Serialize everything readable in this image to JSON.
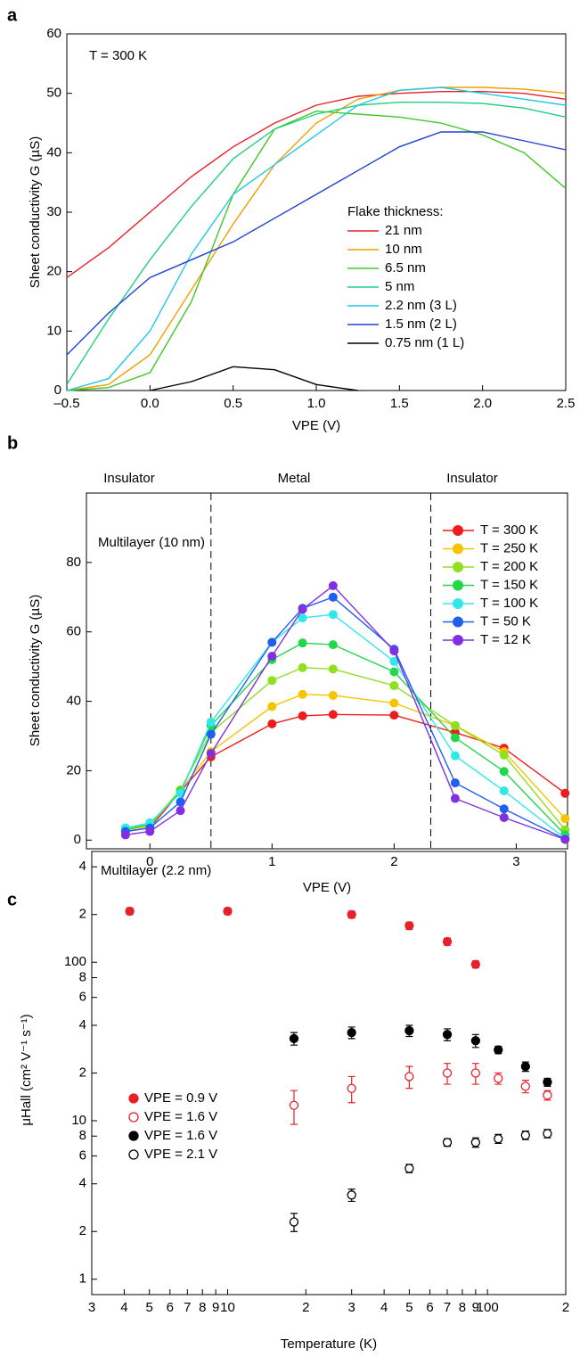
{
  "chart_data": [
    {
      "panel_label": "a",
      "type": "line",
      "annotation": "T = 300 K",
      "xlabel": "VPE (V)",
      "ylabel": "Sheet conductivity G (µS)",
      "xlim": [
        -0.5,
        2.5
      ],
      "ylim": [
        0,
        60
      ],
      "xticks": [
        {
          "value": -0.5,
          "label": "–0.5"
        },
        {
          "value": 0,
          "label": "0.0"
        },
        0.5,
        {
          "value": 1,
          "label": "1.0"
        },
        1.5,
        {
          "value": 2,
          "label": "2.0"
        },
        2.5
      ],
      "yticks": [
        0,
        10,
        20,
        30,
        40,
        50,
        60
      ],
      "legend_title": "Flake thickness:",
      "x": [
        -0.5,
        -0.25,
        0,
        0.25,
        0.5,
        0.75,
        1.0,
        1.25,
        1.5,
        1.75,
        2.0,
        2.25,
        2.5
      ],
      "series": [
        {
          "name": "21 nm",
          "color": "#e8202a",
          "values": [
            19,
            24,
            30,
            36,
            41,
            45,
            48,
            49.5,
            50,
            50.3,
            50.3,
            50,
            49
          ]
        },
        {
          "name": "10 nm",
          "color": "#f0a000",
          "values": [
            0,
            1,
            6,
            17,
            28,
            38,
            45,
            49,
            50.5,
            51,
            51,
            50.7,
            50
          ]
        },
        {
          "name": "6.5 nm",
          "color": "#40c828",
          "values": [
            0,
            0.5,
            3,
            15,
            33,
            44,
            47,
            46.5,
            46,
            45,
            43,
            40,
            34
          ]
        },
        {
          "name": "5 nm",
          "color": "#20d080",
          "values": [
            1,
            12,
            22,
            31,
            39,
            44,
            46.5,
            48,
            48.5,
            48.5,
            48.3,
            47.5,
            46
          ]
        },
        {
          "name": "2.2 nm (3 L)",
          "color": "#20c8e8",
          "values": [
            0,
            2,
            10,
            23,
            33,
            38,
            43,
            48,
            50.5,
            51,
            50,
            49,
            48
          ]
        },
        {
          "name": "1.5 nm (2 L)",
          "color": "#2040d0",
          "values": [
            6,
            13,
            19,
            22,
            25,
            29,
            33,
            37,
            41,
            43.5,
            43.5,
            42,
            40.5
          ]
        },
        {
          "name": "0.75 nm (1 L)",
          "color": "#000000",
          "values": [
            null,
            null,
            0,
            1.5,
            4,
            3.5,
            1,
            0,
            null,
            null,
            null,
            null,
            null
          ]
        }
      ]
    },
    {
      "panel_label": "b",
      "type": "line",
      "markers": true,
      "annotation": "Multilayer (10 nm)",
      "regions": [
        "Insulator",
        "Metal",
        "Insulator"
      ],
      "vlines": [
        0.5,
        2.3
      ],
      "xlabel": "VPE (V)",
      "ylabel": "Sheet conductivity G (µS)",
      "xlim": [
        -0.52,
        3.42
      ],
      "ylim": [
        -2.5,
        100
      ],
      "xticks": [
        0,
        1,
        2,
        3
      ],
      "yticks": [
        0,
        20,
        40,
        60,
        80
      ],
      "x": [
        -0.2,
        0,
        0.25,
        0.5,
        1.0,
        1.25,
        1.5,
        2.0,
        2.5,
        2.9,
        3.4
      ],
      "series": [
        {
          "name": "T = 300 K",
          "color": "#ee1c1c",
          "values": [
            2.5,
            3.5,
            14,
            24,
            33.5,
            35.8,
            36.2,
            36,
            31,
            26.5,
            13.5
          ]
        },
        {
          "name": "T = 250 K",
          "color": "#f5c400",
          "values": [
            3,
            4,
            14.5,
            25.5,
            38.5,
            42,
            41.7,
            39.5,
            33,
            25.5,
            6.2
          ]
        },
        {
          "name": "T = 200 K",
          "color": "#90e020",
          "values": [
            3.5,
            4.5,
            14.5,
            31,
            46,
            49.7,
            49.3,
            44.5,
            33,
            24.5,
            3
          ]
        },
        {
          "name": "T = 150 K",
          "color": "#20d848",
          "values": [
            3,
            4.5,
            14,
            33,
            52,
            56.8,
            56.3,
            48.5,
            29.5,
            19.8,
            1.5
          ]
        },
        {
          "name": "T = 100 K",
          "color": "#30e8e8",
          "values": [
            3.5,
            5,
            13.5,
            34,
            57,
            64,
            65,
            51.5,
            24.3,
            14.2,
            0.5
          ]
        },
        {
          "name": "T = 50 K",
          "color": "#2060f0",
          "values": [
            2.5,
            3.5,
            11,
            30.5,
            57,
            66.8,
            70,
            55,
            16.5,
            9,
            0.3
          ]
        },
        {
          "name": "T = 12 K",
          "color": "#8030e0",
          "values": [
            1.5,
            2.5,
            8.5,
            25,
            53,
            66.5,
            73.3,
            54.5,
            12,
            6.5,
            0.2
          ]
        }
      ]
    },
    {
      "panel_label": "c",
      "type": "scatter",
      "xscale": "log",
      "yscale": "log",
      "annotation": "Multilayer (2.2 nm)",
      "xlabel": "Temperature (K)",
      "ylabel": "μHall (cm² V⁻¹ s⁻¹)",
      "xlim": [
        3,
        200
      ],
      "ylim": [
        0.8,
        500
      ],
      "xticks": [
        3,
        4,
        5,
        6,
        7,
        8,
        9,
        10,
        {
          "value": 20,
          "label": "2"
        },
        {
          "value": 30,
          "label": "3"
        },
        {
          "value": 40,
          "label": "4"
        },
        {
          "value": 50,
          "label": "5"
        },
        {
          "value": 60,
          "label": "6"
        },
        {
          "value": 70,
          "label": "7"
        },
        {
          "value": 80,
          "label": "8"
        },
        {
          "value": 90,
          "label": "9"
        },
        100,
        {
          "value": 200,
          "label": "2"
        }
      ],
      "yticks": [
        1,
        2,
        4,
        6,
        8,
        10,
        {
          "value": 20,
          "label": "2"
        },
        {
          "value": 40,
          "label": "4"
        },
        {
          "value": 60,
          "label": "6"
        },
        {
          "value": 80,
          "label": "8"
        },
        100,
        {
          "value": 200,
          "label": "2"
        },
        {
          "value": 400,
          "label": "4"
        }
      ],
      "series": [
        {
          "name": "VPE = 0.9 V",
          "color": "#e8202a",
          "filled": true,
          "x": [
            4.2,
            10,
            30,
            50,
            70,
            90
          ],
          "values": [
            210,
            210,
            200,
            170,
            135,
            97
          ],
          "errors": [
            10,
            10,
            10,
            9,
            7,
            5
          ]
        },
        {
          "name": "VPE = 1.6 V",
          "color": "#e8202a",
          "filled": false,
          "x": [
            18,
            30,
            50,
            70,
            90,
            110,
            140,
            170
          ],
          "values": [
            12.5,
            16,
            19,
            20,
            20,
            18.5,
            16.5,
            14.5
          ],
          "errors": [
            3,
            3,
            3,
            3,
            3,
            1.5,
            1.5,
            1
          ]
        },
        {
          "name": "VPE = 1.6 V",
          "color": "#000000",
          "filled": true,
          "x": [
            18,
            30,
            50,
            70,
            90,
            110,
            140,
            170
          ],
          "values": [
            33,
            36,
            37,
            35,
            32,
            28,
            22,
            17.5
          ],
          "errors": [
            3,
            3,
            3,
            3,
            3,
            1.5,
            1.5,
            1
          ]
        },
        {
          "name": "VPE = 2.1 V",
          "color": "#000000",
          "filled": false,
          "x": [
            18,
            30,
            50,
            70,
            90,
            110,
            140,
            170
          ],
          "values": [
            2.3,
            3.4,
            5,
            7.3,
            7.3,
            7.7,
            8.1,
            8.3
          ],
          "errors": [
            0.3,
            0.3,
            0.3,
            0.4,
            0.5,
            0.5,
            0.5,
            0.5
          ]
        }
      ]
    }
  ]
}
